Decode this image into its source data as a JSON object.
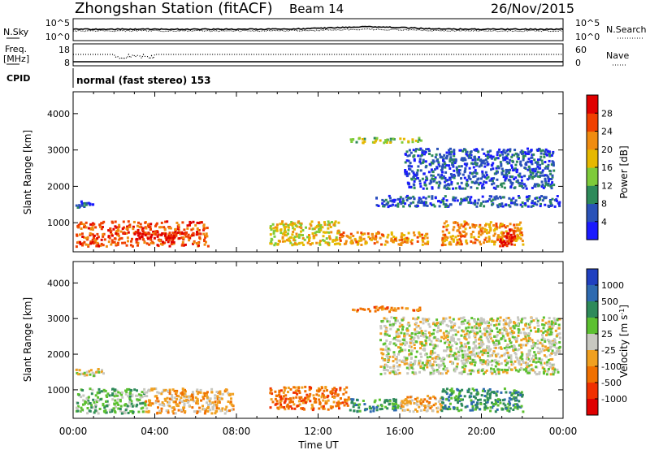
{
  "header": {
    "station": "Zhongshan Station (fitACF)",
    "beam": "Beam 14",
    "date": "26/Nov/2015"
  },
  "strip_panels": {
    "nsky_label": "N.Sky",
    "nsearch_label": "N.Search",
    "nsky_ticks": [
      "10^5",
      "10^0"
    ],
    "nsearch_ticks": [
      "10^5",
      "10^0"
    ],
    "freq_label": "Freq.",
    "freq_unit": "[MHz]",
    "freq_ticks": [
      "18",
      "8"
    ],
    "nave_label": "Nave",
    "nave_ticks": [
      "60",
      "0"
    ],
    "cpid_label": "CPID",
    "cpid_text": "normal (fast stereo) 153"
  },
  "chart_data": [
    {
      "type": "heatmap",
      "panel": "power",
      "ylabel": "Slant Range [km]",
      "xlabel": "",
      "yticks": [
        "1000",
        "2000",
        "3000",
        "4000"
      ],
      "ylim": [
        200,
        4600
      ],
      "xlim_hours": [
        0,
        24
      ],
      "colorbar_label": "Power [dB]",
      "colorbar_ticks": [
        "4",
        "8",
        "12",
        "16",
        "20",
        "24",
        "28"
      ],
      "colorbar_colors": [
        "#1a1aff",
        "#2a52b8",
        "#2e8a5a",
        "#7ecb3a",
        "#e6b800",
        "#f08c10",
        "#f04000",
        "#e00000"
      ],
      "regions": [
        {
          "t0": 0.1,
          "t1": 6.6,
          "r0": 300,
          "r1": 1000,
          "level": 6
        },
        {
          "t0": 0.1,
          "t1": 1.0,
          "r0": 1350,
          "r1": 1550,
          "level": 1
        },
        {
          "t0": 3.0,
          "t1": 6.0,
          "r0": 500,
          "r1": 700,
          "level": 7
        },
        {
          "t0": 9.6,
          "t1": 13.0,
          "r0": 350,
          "r1": 1000,
          "level": 4
        },
        {
          "t0": 13.0,
          "t1": 17.5,
          "r0": 350,
          "r1": 700,
          "level": 5
        },
        {
          "t0": 14.8,
          "t1": 23.8,
          "r0": 1400,
          "r1": 1700,
          "level": 1
        },
        {
          "t0": 16.2,
          "t1": 23.5,
          "r0": 1900,
          "r1": 3000,
          "level": 1
        },
        {
          "t0": 18.0,
          "t1": 22.0,
          "r0": 350,
          "r1": 1000,
          "level": 5
        },
        {
          "t0": 13.5,
          "t1": 17.0,
          "r0": 3150,
          "r1": 3300,
          "level": 3
        },
        {
          "t0": 20.8,
          "t1": 21.6,
          "r0": 300,
          "r1": 800,
          "level": 7
        }
      ]
    },
    {
      "type": "heatmap",
      "panel": "velocity",
      "ylabel": "Slant Range [km]",
      "xlabel": "Time UT",
      "yticks": [
        "1000",
        "2000",
        "3000",
        "4000"
      ],
      "ylim": [
        200,
        4600
      ],
      "xlim_hours": [
        0,
        24
      ],
      "xticks": [
        "00:00",
        "04:00",
        "08:00",
        "12:00",
        "16:00",
        "20:00",
        "00:00"
      ],
      "colorbar_label": "Velocity [m s",
      "colorbar_label_sup": "-1",
      "colorbar_label_end": "]",
      "colorbar_ticks": [
        "1000",
        "500",
        "100",
        "25",
        "-25",
        "-100",
        "-500",
        "-1000"
      ],
      "colorbar_colors": [
        "#2040c0",
        "#2e6ab0",
        "#2e8a5a",
        "#5cc030",
        "#c8c8c0",
        "#f0a020",
        "#f07000",
        "#f03000",
        "#e00000"
      ],
      "regions": [
        {
          "t0": 0.1,
          "t1": 3.5,
          "r0": 300,
          "r1": 1000,
          "level": 3
        },
        {
          "t0": 3.5,
          "t1": 7.8,
          "r0": 300,
          "r1": 1000,
          "level": 5
        },
        {
          "t0": 0.1,
          "t1": 1.5,
          "r0": 1350,
          "r1": 1550,
          "level": 4
        },
        {
          "t0": 9.6,
          "t1": 13.5,
          "r0": 400,
          "r1": 1050,
          "level": 6
        },
        {
          "t0": 13.5,
          "t1": 16.0,
          "r0": 350,
          "r1": 700,
          "level": 2
        },
        {
          "t0": 16.0,
          "t1": 18.0,
          "r0": 350,
          "r1": 800,
          "level": 5
        },
        {
          "t0": 18.0,
          "t1": 22.0,
          "r0": 350,
          "r1": 1000,
          "level": 2
        },
        {
          "t0": 15.0,
          "t1": 23.8,
          "r0": 1400,
          "r1": 3000,
          "level": 4
        },
        {
          "t0": 13.5,
          "t1": 17.0,
          "r0": 3150,
          "r1": 3300,
          "level": 6
        }
      ]
    }
  ]
}
